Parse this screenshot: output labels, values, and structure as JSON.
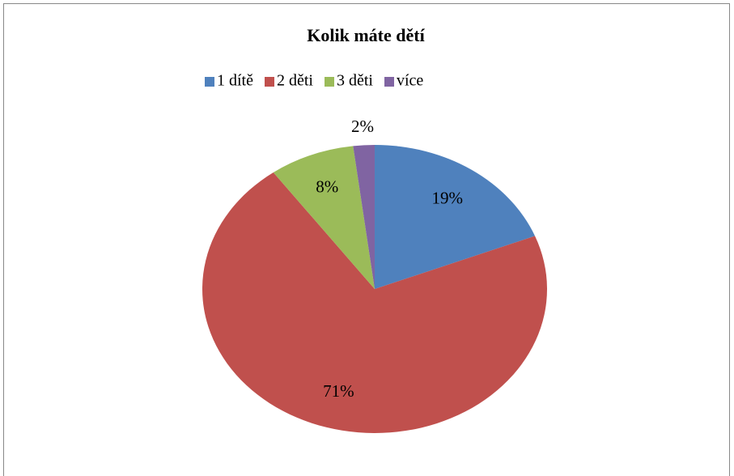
{
  "chart_data": {
    "type": "pie",
    "title": "Kolik máte dětí",
    "categories": [
      "1 dítě",
      "2 děti",
      "3 děti",
      "více"
    ],
    "values": [
      19,
      71,
      8,
      2
    ],
    "value_labels": [
      "19%",
      "71%",
      "8%",
      "2%"
    ],
    "colors": [
      "#4f81bd",
      "#c0504d",
      "#9bbb59",
      "#8064a2"
    ],
    "legend": "top"
  }
}
